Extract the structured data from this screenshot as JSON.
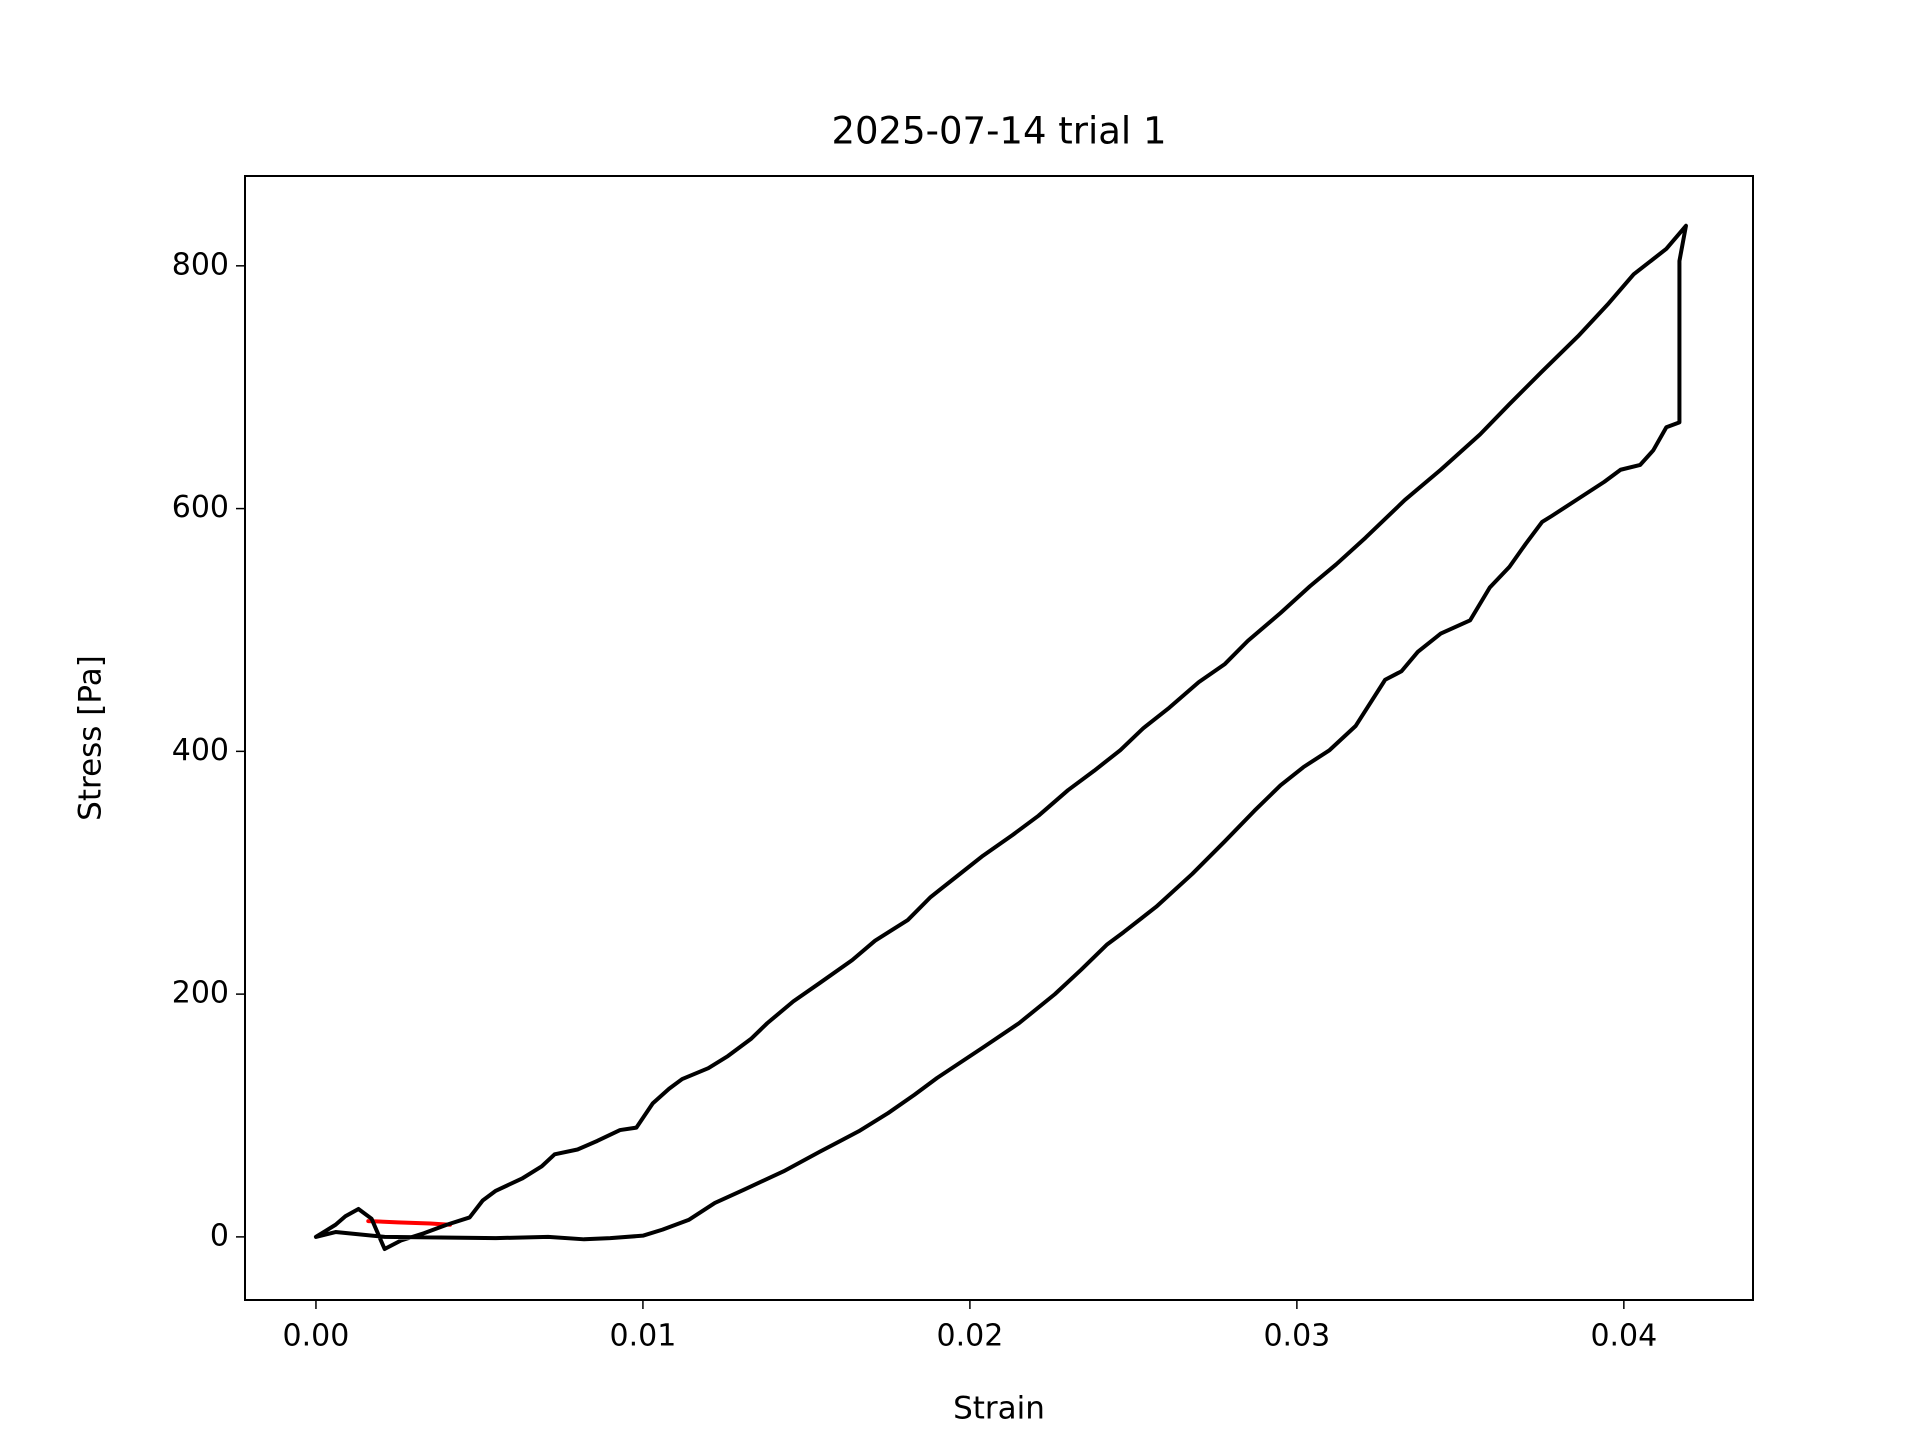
{
  "chart_data": {
    "type": "line",
    "title": "2025-07-14 trial 1",
    "xlabel": "Strain",
    "ylabel": "Stress [Pa]",
    "xlim": [
      -0.00217,
      0.04395
    ],
    "ylim": [
      -52,
      874
    ],
    "xticks": [
      {
        "value": 0,
        "label": "0.00"
      },
      0.01,
      0.02,
      0.03,
      0.04
    ],
    "yticks": [
      0,
      200,
      400,
      600,
      800
    ],
    "series": [
      {
        "color": "#ff0000",
        "x": [
          0.0016,
          0.0025,
          0.0035,
          0.0041
        ],
        "values": [
          13,
          12,
          11,
          10
        ]
      },
      {
        "color": "#000000",
        "x": [
          0,
          0.0003,
          0.0006,
          0.0009,
          0.0013,
          0.0017,
          0.0021,
          0.0026,
          0.0033,
          0.004,
          0.0047,
          0.0051,
          0.0055,
          0.0063,
          0.0069,
          0.0073,
          0.008,
          0.0086,
          0.0093,
          0.0098,
          0.0103,
          0.0108,
          0.0112,
          0.012,
          0.0126,
          0.0133,
          0.0138,
          0.0146,
          0.0154,
          0.0164,
          0.0171,
          0.0181,
          0.0188,
          0.0196,
          0.0204,
          0.0213,
          0.0221,
          0.023,
          0.0238,
          0.0246,
          0.0253,
          0.0261,
          0.027,
          0.0278,
          0.0285,
          0.0295,
          0.0304,
          0.0312,
          0.0321,
          0.0333,
          0.0344,
          0.0356,
          0.0365,
          0.0375,
          0.0386,
          0.0395,
          0.0403,
          0.0413,
          0.0419,
          0.0417,
          0.0417,
          0.0413,
          0.0409,
          0.0405,
          0.0399,
          0.0394,
          0.0386,
          0.0378,
          0.0375,
          0.037,
          0.0365,
          0.0359,
          0.0353,
          0.0344,
          0.0337,
          0.0332,
          0.0327,
          0.0318,
          0.031,
          0.0302,
          0.0295,
          0.0287,
          0.0278,
          0.0268,
          0.0257,
          0.0247,
          0.0242,
          0.0234,
          0.0226,
          0.0215,
          0.0204,
          0.019,
          0.0183,
          0.0175,
          0.0166,
          0.0154,
          0.0143,
          0.0131,
          0.0122,
          0.0114,
          0.0106,
          0.01,
          0.009,
          0.0082,
          0.0071,
          0.0055,
          0.0021,
          0.0006,
          0
        ],
        "values": [
          0,
          5,
          10,
          17,
          23,
          15,
          -10,
          -3,
          3,
          10,
          16,
          30,
          38,
          48,
          58,
          68,
          72,
          79,
          88,
          90,
          110,
          122,
          130,
          139,
          149,
          163,
          176,
          194,
          209,
          228,
          244,
          261,
          280,
          297,
          314,
          331,
          347,
          368,
          384,
          401,
          419,
          436,
          457,
          472,
          491,
          514,
          536,
          554,
          576,
          607,
          632,
          661,
          686,
          713,
          742,
          768,
          793,
          814,
          833,
          804,
          671,
          667,
          648,
          636,
          632,
          622,
          608,
          594,
          589,
          571,
          552,
          535,
          508,
          497,
          482,
          466,
          459,
          421,
          401,
          387,
          372,
          351,
          326,
          299,
          272,
          251,
          241,
          220,
          200,
          176,
          156,
          131,
          117,
          102,
          87,
          70,
          54,
          39,
          28,
          14,
          6,
          1,
          -1,
          -2,
          0,
          -1,
          0,
          4,
          0
        ]
      }
    ]
  }
}
